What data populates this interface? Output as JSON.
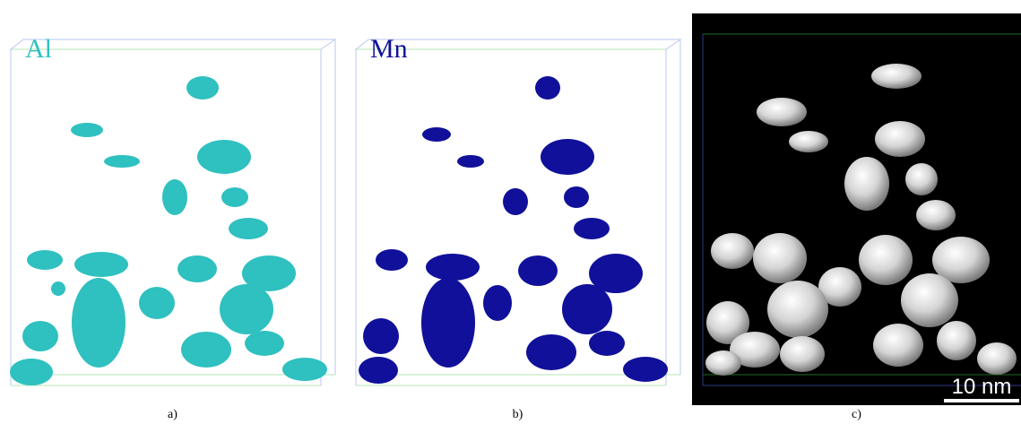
{
  "panels": [
    {
      "caption": "a)",
      "element": "Al",
      "color": "#2fc0c0"
    },
    {
      "caption": "b)",
      "element": "Mn",
      "color": "#10109a"
    },
    {
      "caption": "c)",
      "scalebar": "10 nm"
    }
  ]
}
